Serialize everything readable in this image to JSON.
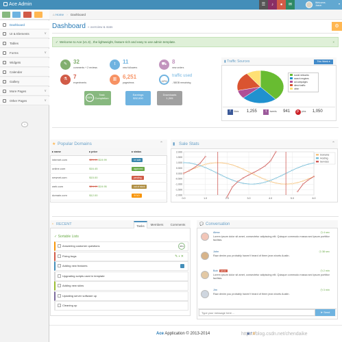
{
  "navbar": {
    "brand": "Ace Admin",
    "welcome": "Welcome,",
    "user": "Jason",
    "badges": [
      "",
      "",
      "",
      ""
    ]
  },
  "sidebar": {
    "items": [
      {
        "label": "Dashboard",
        "active": true
      },
      {
        "label": "UI & Elements",
        "caret": "∨"
      },
      {
        "label": "Tables"
      },
      {
        "label": "Forms",
        "caret": "∨"
      },
      {
        "label": "Widgets"
      },
      {
        "label": "Calendar"
      },
      {
        "label": "Gallery"
      },
      {
        "label": "More Pages",
        "caret": "∨"
      },
      {
        "label": "Other Pages",
        "caret": "∨"
      }
    ]
  },
  "breadcrumb": {
    "home": "Home",
    "sep": "›",
    "current": "Dashboard"
  },
  "page": {
    "title": "Dashboard",
    "subtitle": "» overview & stats"
  },
  "alert": {
    "text": "Welcome to Ace (v1.3) , the lightweight, feature-rich and easy to use admin template.",
    "close": "×"
  },
  "infoboxes": [
    {
      "num": "32",
      "label": "comments + 2 reviews",
      "color": "#82af6f"
    },
    {
      "num": "11",
      "label": "new followers",
      "color": "#6fb3e0"
    },
    {
      "num": "8",
      "label": "new orders",
      "color": "#c294be"
    },
    {
      "num": "7",
      "label": "experiments",
      "color": "#d15b47"
    },
    {
      "num": "6,251",
      "label": "pageviews",
      "color": "#f79263"
    },
    {
      "num": "traffic used",
      "label": "- 58GB remaining",
      "color": "#9abc32",
      "small": "42%"
    }
  ],
  "tiles": [
    {
      "t1": "Task",
      "t2": "Completion",
      "color": "#87b87f",
      "pct": "61%"
    },
    {
      "t1": "Earnings",
      "t2": "$32,000",
      "color": "#6fb3e0"
    },
    {
      "t1": "Downloads",
      "t2": "1,205",
      "color": "#a0a0a0"
    }
  ],
  "traffic": {
    "title": "Traffic Sources",
    "dropdown": "This Week ▾",
    "legend": [
      "social networks",
      "search engines",
      "ad campaigns",
      "direct traffic",
      "other"
    ],
    "legend_colors": [
      "#68bc31",
      "#2091cf",
      "#af4e96",
      "#da5430",
      "#fee074"
    ],
    "likes_label": "likes",
    "likes": "1,255",
    "tweets_label": "tweets",
    "tweets": "941",
    "pins_label": "pins",
    "pins": "1,050"
  },
  "chart_data": [
    {
      "type": "pie",
      "title": "Traffic Sources",
      "categories": [
        "social networks",
        "search engines",
        "ad campaigns",
        "direct traffic",
        "other"
      ],
      "values": [
        38.7,
        24.5,
        8.2,
        18.6,
        10.0
      ],
      "colors": [
        "#68bc31",
        "#2091cf",
        "#af4e96",
        "#da5430",
        "#fee074"
      ]
    },
    {
      "type": "line",
      "title": "Sale Stats",
      "xlim": [
        0,
        6
      ],
      "ylim": [
        -2,
        2
      ],
      "yticks": [
        "2.000",
        "1.500",
        "1.000",
        "0.500",
        "0.000",
        "-0.500",
        "-1.000",
        "-1.500",
        "-2.000"
      ],
      "xticks": [
        "0.0",
        "1.0",
        "2.0",
        "3.0",
        "4.0",
        "5.0",
        "6.0"
      ],
      "series": [
        {
          "name": "Domains",
          "color": "#f6c47f"
        },
        {
          "name": "Hosting",
          "color": "#77bdd7"
        },
        {
          "name": "Services",
          "color": "#cf5b57"
        }
      ]
    }
  ],
  "domains": {
    "title": "Popular Domains",
    "cols": [
      "name",
      "price",
      "status"
    ],
    "rows": [
      {
        "name": "internet.com",
        "old": "$29.99",
        "new": "$19.99",
        "status": "on sale",
        "color": "#3a87ad"
      },
      {
        "name": "online.com",
        "old": "",
        "new": "$16.45",
        "status": "approved",
        "color": "#69aa46"
      },
      {
        "name": "newnet.com",
        "old": "",
        "new": "$15.00",
        "status": "pending",
        "color": "#d15b47"
      },
      {
        "name": "web.com",
        "old": "$24.99",
        "new": "$19.95",
        "status": "out of stock",
        "color": "#b08f44"
      },
      {
        "name": "domain.com",
        "old": "",
        "new": "$12.00",
        "status": "SOLD",
        "color": "#f89406"
      }
    ]
  },
  "salestats": {
    "title": "Sale Stats"
  },
  "recent": {
    "title": "RECENT",
    "tabs": [
      "Tasks",
      "Members",
      "Comments"
    ],
    "sortable": "Sortable Lists",
    "tasks": [
      "Answering customer questions",
      "Fixing bugs",
      "Adding new features",
      "Upgrading scripts used in template",
      "Adding new skins",
      "Updating server software up",
      "Cleaning up"
    ],
    "task_colors": [
      "#f89406",
      "#d15b47",
      "#438eb9",
      "#d5d5d5",
      "#9abc32",
      "#7b6b9c",
      "#e5e5e5"
    ],
    "tag1": "45%"
  },
  "conversation": {
    "title": "Conversation",
    "msgs": [
      {
        "name": "Alexa",
        "time": "4 sec",
        "text": "Lorem ipsum dolor sit amet, consectetur adipiscing elit. Quisque commodo massa sed ipsum porttitor facilisis."
      },
      {
        "name": "John",
        "time": "38 sec",
        "text": "Raw denim you probably haven't heard of them jean shorts Austin."
      },
      {
        "name": "Bob",
        "badge": "admin",
        "time": "2 min",
        "text": "Lorem ipsum dolor sit amet, consectetur adipiscing elit. Quisque commodo massa sed ipsum porttitor facilisis."
      },
      {
        "name": "Jim",
        "time": "3 min",
        "text": "Raw denim you probably haven't heard of them jean shorts Austin."
      }
    ],
    "placeholder": "Type your message here ...",
    "send": "Send"
  },
  "footer": {
    "brand": "Ace",
    "text": " Application © 2013-2014",
    "watermark": "https://blog.csdn.net/chendaike"
  }
}
